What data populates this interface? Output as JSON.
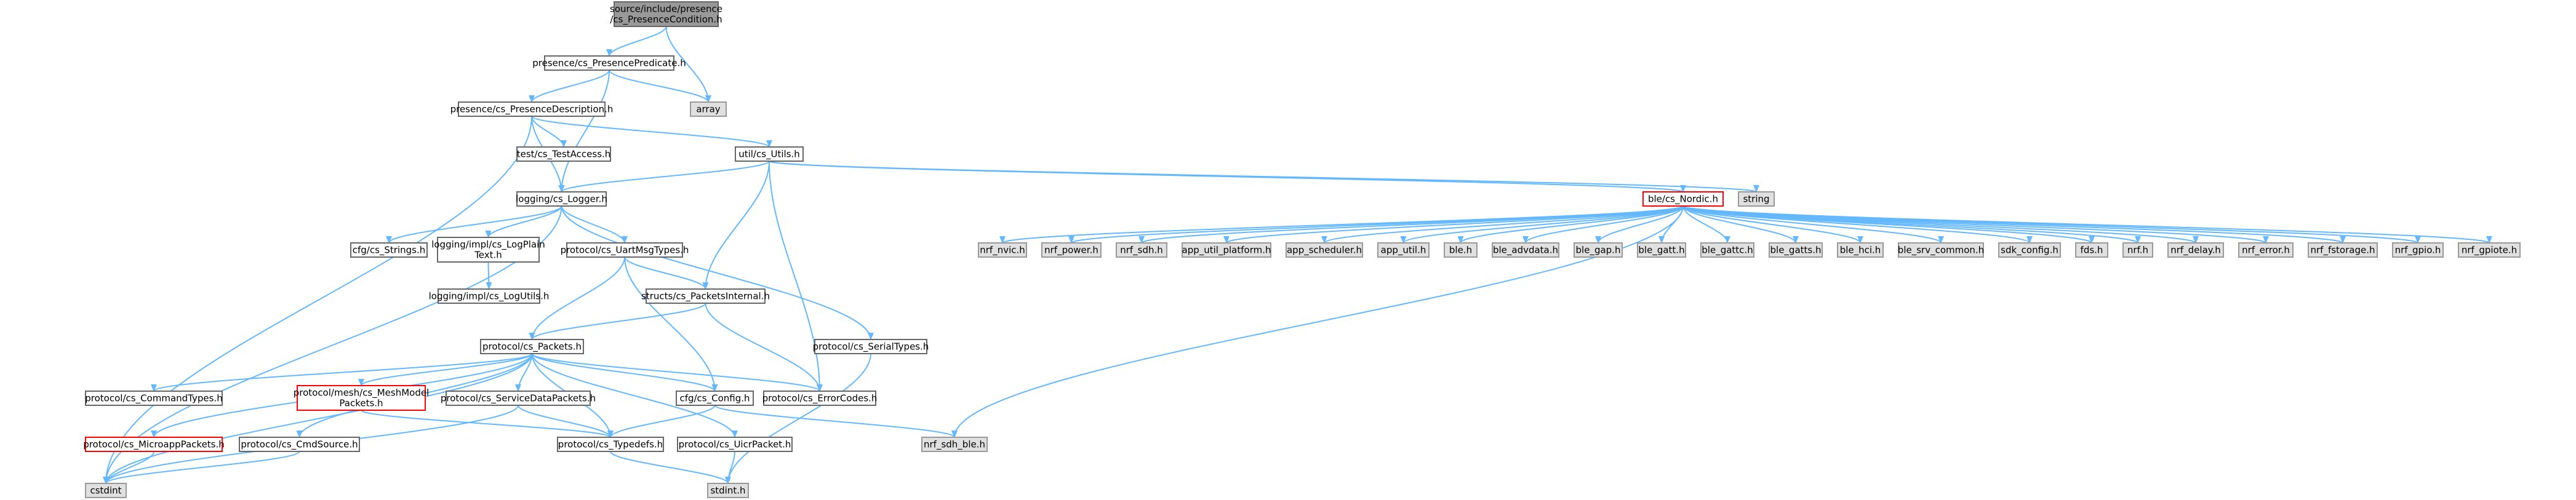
{
  "colors": {
    "edge": "#63b8ff",
    "root_fill": "#999999",
    "root_border": "#666666",
    "file_border": "#666666",
    "system_fill": "#e0e0e0",
    "system_border": "#999999",
    "incomplete_border": "#ff0000"
  },
  "nodes": [
    {
      "id": "root",
      "lines": [
        "source/include/presence",
        "/cs_PresenceCondition.h"
      ],
      "kind": "root"
    },
    {
      "id": "predicate",
      "lines": [
        "presence/cs_PresencePredicate.h"
      ],
      "kind": "file"
    },
    {
      "id": "array",
      "lines": [
        "array"
      ],
      "kind": "system"
    },
    {
      "id": "description",
      "lines": [
        "presence/cs_PresenceDescription.h"
      ],
      "kind": "file"
    },
    {
      "id": "testaccess",
      "lines": [
        "test/cs_TestAccess.h"
      ],
      "kind": "file"
    },
    {
      "id": "utils",
      "lines": [
        "util/cs_Utils.h"
      ],
      "kind": "file"
    },
    {
      "id": "logger",
      "lines": [
        "logging/cs_Logger.h"
      ],
      "kind": "file"
    },
    {
      "id": "nordic",
      "lines": [
        "ble/cs_Nordic.h"
      ],
      "kind": "incomplete"
    },
    {
      "id": "string",
      "lines": [
        "string"
      ],
      "kind": "system"
    },
    {
      "id": "strings",
      "lines": [
        "cfg/cs_Strings.h"
      ],
      "kind": "file"
    },
    {
      "id": "logplain",
      "lines": [
        "logging/impl/cs_LogPlain",
        "Text.h"
      ],
      "kind": "file"
    },
    {
      "id": "logutils",
      "lines": [
        "logging/impl/cs_LogUtils.h"
      ],
      "kind": "file"
    },
    {
      "id": "uartmsg",
      "lines": [
        "protocol/cs_UartMsgTypes.h"
      ],
      "kind": "file"
    },
    {
      "id": "packetsinternal",
      "lines": [
        "structs/cs_PacketsInternal.h"
      ],
      "kind": "file"
    },
    {
      "id": "packets",
      "lines": [
        "protocol/cs_Packets.h"
      ],
      "kind": "file"
    },
    {
      "id": "serialtypes",
      "lines": [
        "protocol/cs_SerialTypes.h"
      ],
      "kind": "file"
    },
    {
      "id": "commandtypes",
      "lines": [
        "protocol/cs_CommandTypes.h"
      ],
      "kind": "file"
    },
    {
      "id": "meshmodel",
      "lines": [
        "protocol/mesh/cs_MeshModel",
        "Packets.h"
      ],
      "kind": "incomplete"
    },
    {
      "id": "servicedata",
      "lines": [
        "protocol/cs_ServiceDataPackets.h"
      ],
      "kind": "file"
    },
    {
      "id": "config",
      "lines": [
        "cfg/cs_Config.h"
      ],
      "kind": "file"
    },
    {
      "id": "errorcodes",
      "lines": [
        "protocol/cs_ErrorCodes.h"
      ],
      "kind": "file"
    },
    {
      "id": "microapp",
      "lines": [
        "protocol/cs_MicroappPackets.h"
      ],
      "kind": "incomplete"
    },
    {
      "id": "cmdsource",
      "lines": [
        "protocol/cs_CmdSource.h"
      ],
      "kind": "file"
    },
    {
      "id": "typedefs",
      "lines": [
        "protocol/cs_Typedefs.h"
      ],
      "kind": "file"
    },
    {
      "id": "uicrpacket",
      "lines": [
        "protocol/cs_UicrPacket.h"
      ],
      "kind": "file"
    },
    {
      "id": "nrfsdhble",
      "lines": [
        "nrf_sdh_ble.h"
      ],
      "kind": "system"
    },
    {
      "id": "cstdint",
      "lines": [
        "cstdint"
      ],
      "kind": "system"
    },
    {
      "id": "stdinth",
      "lines": [
        "stdint.h"
      ],
      "kind": "system"
    },
    {
      "id": "nrfnvic",
      "lines": [
        "nrf_nvic.h"
      ],
      "kind": "system"
    },
    {
      "id": "nrfpower",
      "lines": [
        "nrf_power.h"
      ],
      "kind": "system"
    },
    {
      "id": "nrfsdh",
      "lines": [
        "nrf_sdh.h"
      ],
      "kind": "system"
    },
    {
      "id": "apputilplatform",
      "lines": [
        "app_util_platform.h"
      ],
      "kind": "system"
    },
    {
      "id": "appscheduler",
      "lines": [
        "app_scheduler.h"
      ],
      "kind": "system"
    },
    {
      "id": "apputil",
      "lines": [
        "app_util.h"
      ],
      "kind": "system"
    },
    {
      "id": "bleh",
      "lines": [
        "ble.h"
      ],
      "kind": "system"
    },
    {
      "id": "bleadvdata",
      "lines": [
        "ble_advdata.h"
      ],
      "kind": "system"
    },
    {
      "id": "blegap",
      "lines": [
        "ble_gap.h"
      ],
      "kind": "system"
    },
    {
      "id": "blegatt",
      "lines": [
        "ble_gatt.h"
      ],
      "kind": "system"
    },
    {
      "id": "blegattc",
      "lines": [
        "ble_gattc.h"
      ],
      "kind": "system"
    },
    {
      "id": "blegatts",
      "lines": [
        "ble_gatts.h"
      ],
      "kind": "system"
    },
    {
      "id": "blehci",
      "lines": [
        "ble_hci.h"
      ],
      "kind": "system"
    },
    {
      "id": "blesrvcommon",
      "lines": [
        "ble_srv_common.h"
      ],
      "kind": "system"
    },
    {
      "id": "sdkconfig",
      "lines": [
        "sdk_config.h"
      ],
      "kind": "system"
    },
    {
      "id": "fds",
      "lines": [
        "fds.h"
      ],
      "kind": "system"
    },
    {
      "id": "nrf",
      "lines": [
        "nrf.h"
      ],
      "kind": "system"
    },
    {
      "id": "nrfdelay",
      "lines": [
        "nrf_delay.h"
      ],
      "kind": "system"
    },
    {
      "id": "nrferror",
      "lines": [
        "nrf_error.h"
      ],
      "kind": "system"
    },
    {
      "id": "nrffstorage",
      "lines": [
        "nrf_fstorage.h"
      ],
      "kind": "system"
    },
    {
      "id": "nrfgpio",
      "lines": [
        "nrf_gpio.h"
      ],
      "kind": "system"
    },
    {
      "id": "nrfgpiote",
      "lines": [
        "nrf_gpiote.h"
      ],
      "kind": "system"
    }
  ],
  "edges": [
    [
      "root",
      "predicate"
    ],
    [
      "root",
      "array"
    ],
    [
      "predicate",
      "array"
    ],
    [
      "predicate",
      "description"
    ],
    [
      "predicate",
      "logger"
    ],
    [
      "description",
      "testaccess"
    ],
    [
      "description",
      "utils"
    ],
    [
      "description",
      "logger"
    ],
    [
      "description",
      "cstdint"
    ],
    [
      "utils",
      "logger"
    ],
    [
      "utils",
      "nordic"
    ],
    [
      "utils",
      "string"
    ],
    [
      "utils",
      "packetsinternal"
    ],
    [
      "utils",
      "errorcodes"
    ],
    [
      "logger",
      "strings"
    ],
    [
      "logger",
      "logplain"
    ],
    [
      "logger",
      "uartmsg"
    ],
    [
      "logger",
      "serialtypes"
    ],
    [
      "logger",
      "cstdint"
    ],
    [
      "logplain",
      "logutils"
    ],
    [
      "uartmsg",
      "packetsinternal"
    ],
    [
      "uartmsg",
      "packets"
    ],
    [
      "uartmsg",
      "config"
    ],
    [
      "packetsinternal",
      "packets"
    ],
    [
      "packetsinternal",
      "errorcodes"
    ],
    [
      "packets",
      "commandtypes"
    ],
    [
      "packets",
      "meshmodel"
    ],
    [
      "packets",
      "servicedata"
    ],
    [
      "packets",
      "config"
    ],
    [
      "packets",
      "errorcodes"
    ],
    [
      "packets",
      "microapp"
    ],
    [
      "packets",
      "cmdsource"
    ],
    [
      "packets",
      "typedefs"
    ],
    [
      "packets",
      "uicrpacket"
    ],
    [
      "packets",
      "cstdint"
    ],
    [
      "serialtypes",
      "stdinth"
    ],
    [
      "meshmodel",
      "typedefs"
    ],
    [
      "servicedata",
      "typedefs"
    ],
    [
      "servicedata",
      "cstdint"
    ],
    [
      "config",
      "typedefs"
    ],
    [
      "config",
      "nrfsdhble"
    ],
    [
      "microapp",
      "cstdint"
    ],
    [
      "cmdsource",
      "cstdint"
    ],
    [
      "typedefs",
      "stdinth"
    ],
    [
      "uicrpacket",
      "stdinth"
    ],
    [
      "nordic",
      "nrfsdhble"
    ],
    [
      "nordic",
      "nrfnvic"
    ],
    [
      "nordic",
      "nrfpower"
    ],
    [
      "nordic",
      "nrfsdh"
    ],
    [
      "nordic",
      "apputilplatform"
    ],
    [
      "nordic",
      "appscheduler"
    ],
    [
      "nordic",
      "apputil"
    ],
    [
      "nordic",
      "bleh"
    ],
    [
      "nordic",
      "bleadvdata"
    ],
    [
      "nordic",
      "blegap"
    ],
    [
      "nordic",
      "blegatt"
    ],
    [
      "nordic",
      "blegattc"
    ],
    [
      "nordic",
      "blegatts"
    ],
    [
      "nordic",
      "blehci"
    ],
    [
      "nordic",
      "blesrvcommon"
    ],
    [
      "nordic",
      "sdkconfig"
    ],
    [
      "nordic",
      "fds"
    ],
    [
      "nordic",
      "nrf"
    ],
    [
      "nordic",
      "nrfdelay"
    ],
    [
      "nordic",
      "nrferror"
    ],
    [
      "nordic",
      "nrffstorage"
    ],
    [
      "nordic",
      "nrfgpio"
    ],
    [
      "nordic",
      "nrfgpiote"
    ]
  ]
}
